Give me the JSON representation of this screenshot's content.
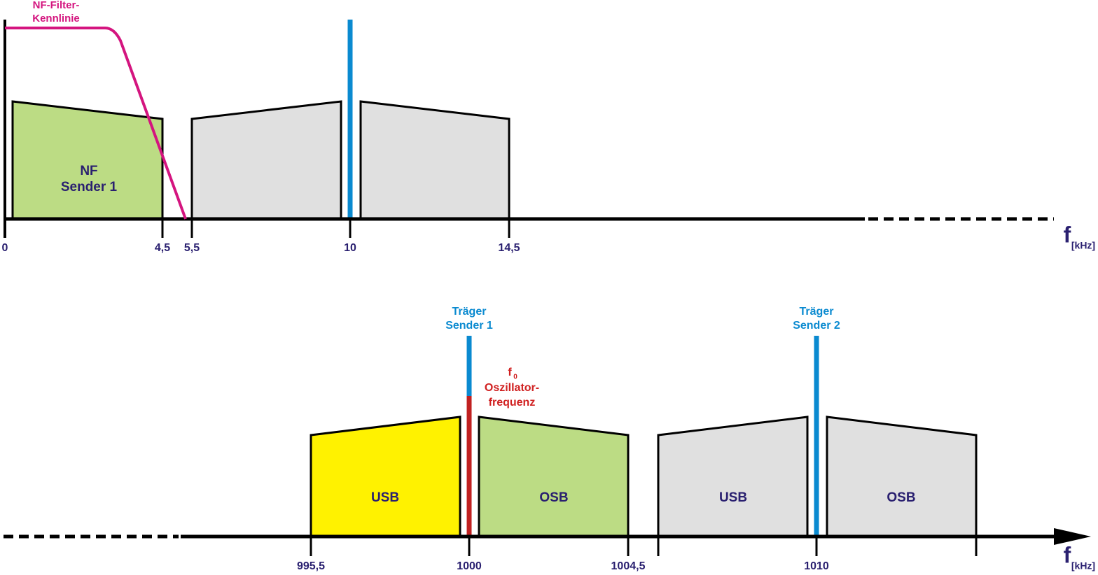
{
  "top": {
    "filter_label": [
      "NF-Filter-",
      "Kennlinie"
    ],
    "band_label": [
      "NF",
      "Sender 1"
    ],
    "ticks": [
      "0",
      "4,5",
      "5,5",
      "10",
      "14,5"
    ],
    "axis_label": "f",
    "axis_unit": "[kHz]"
  },
  "bottom": {
    "carrier1": [
      "Träger",
      "Sender 1"
    ],
    "carrier2": [
      "Träger",
      "Sender 2"
    ],
    "oscillator": {
      "symbol": "f",
      "subscript": "0",
      "lines": [
        "Oszillator-",
        "frequenz"
      ]
    },
    "bands": [
      "USB",
      "OSB",
      "USB",
      "OSB"
    ],
    "ticks": [
      "995,5",
      "1000",
      "1004,5",
      "1010"
    ],
    "axis_label": "f",
    "axis_unit": "[kHz]"
  }
}
